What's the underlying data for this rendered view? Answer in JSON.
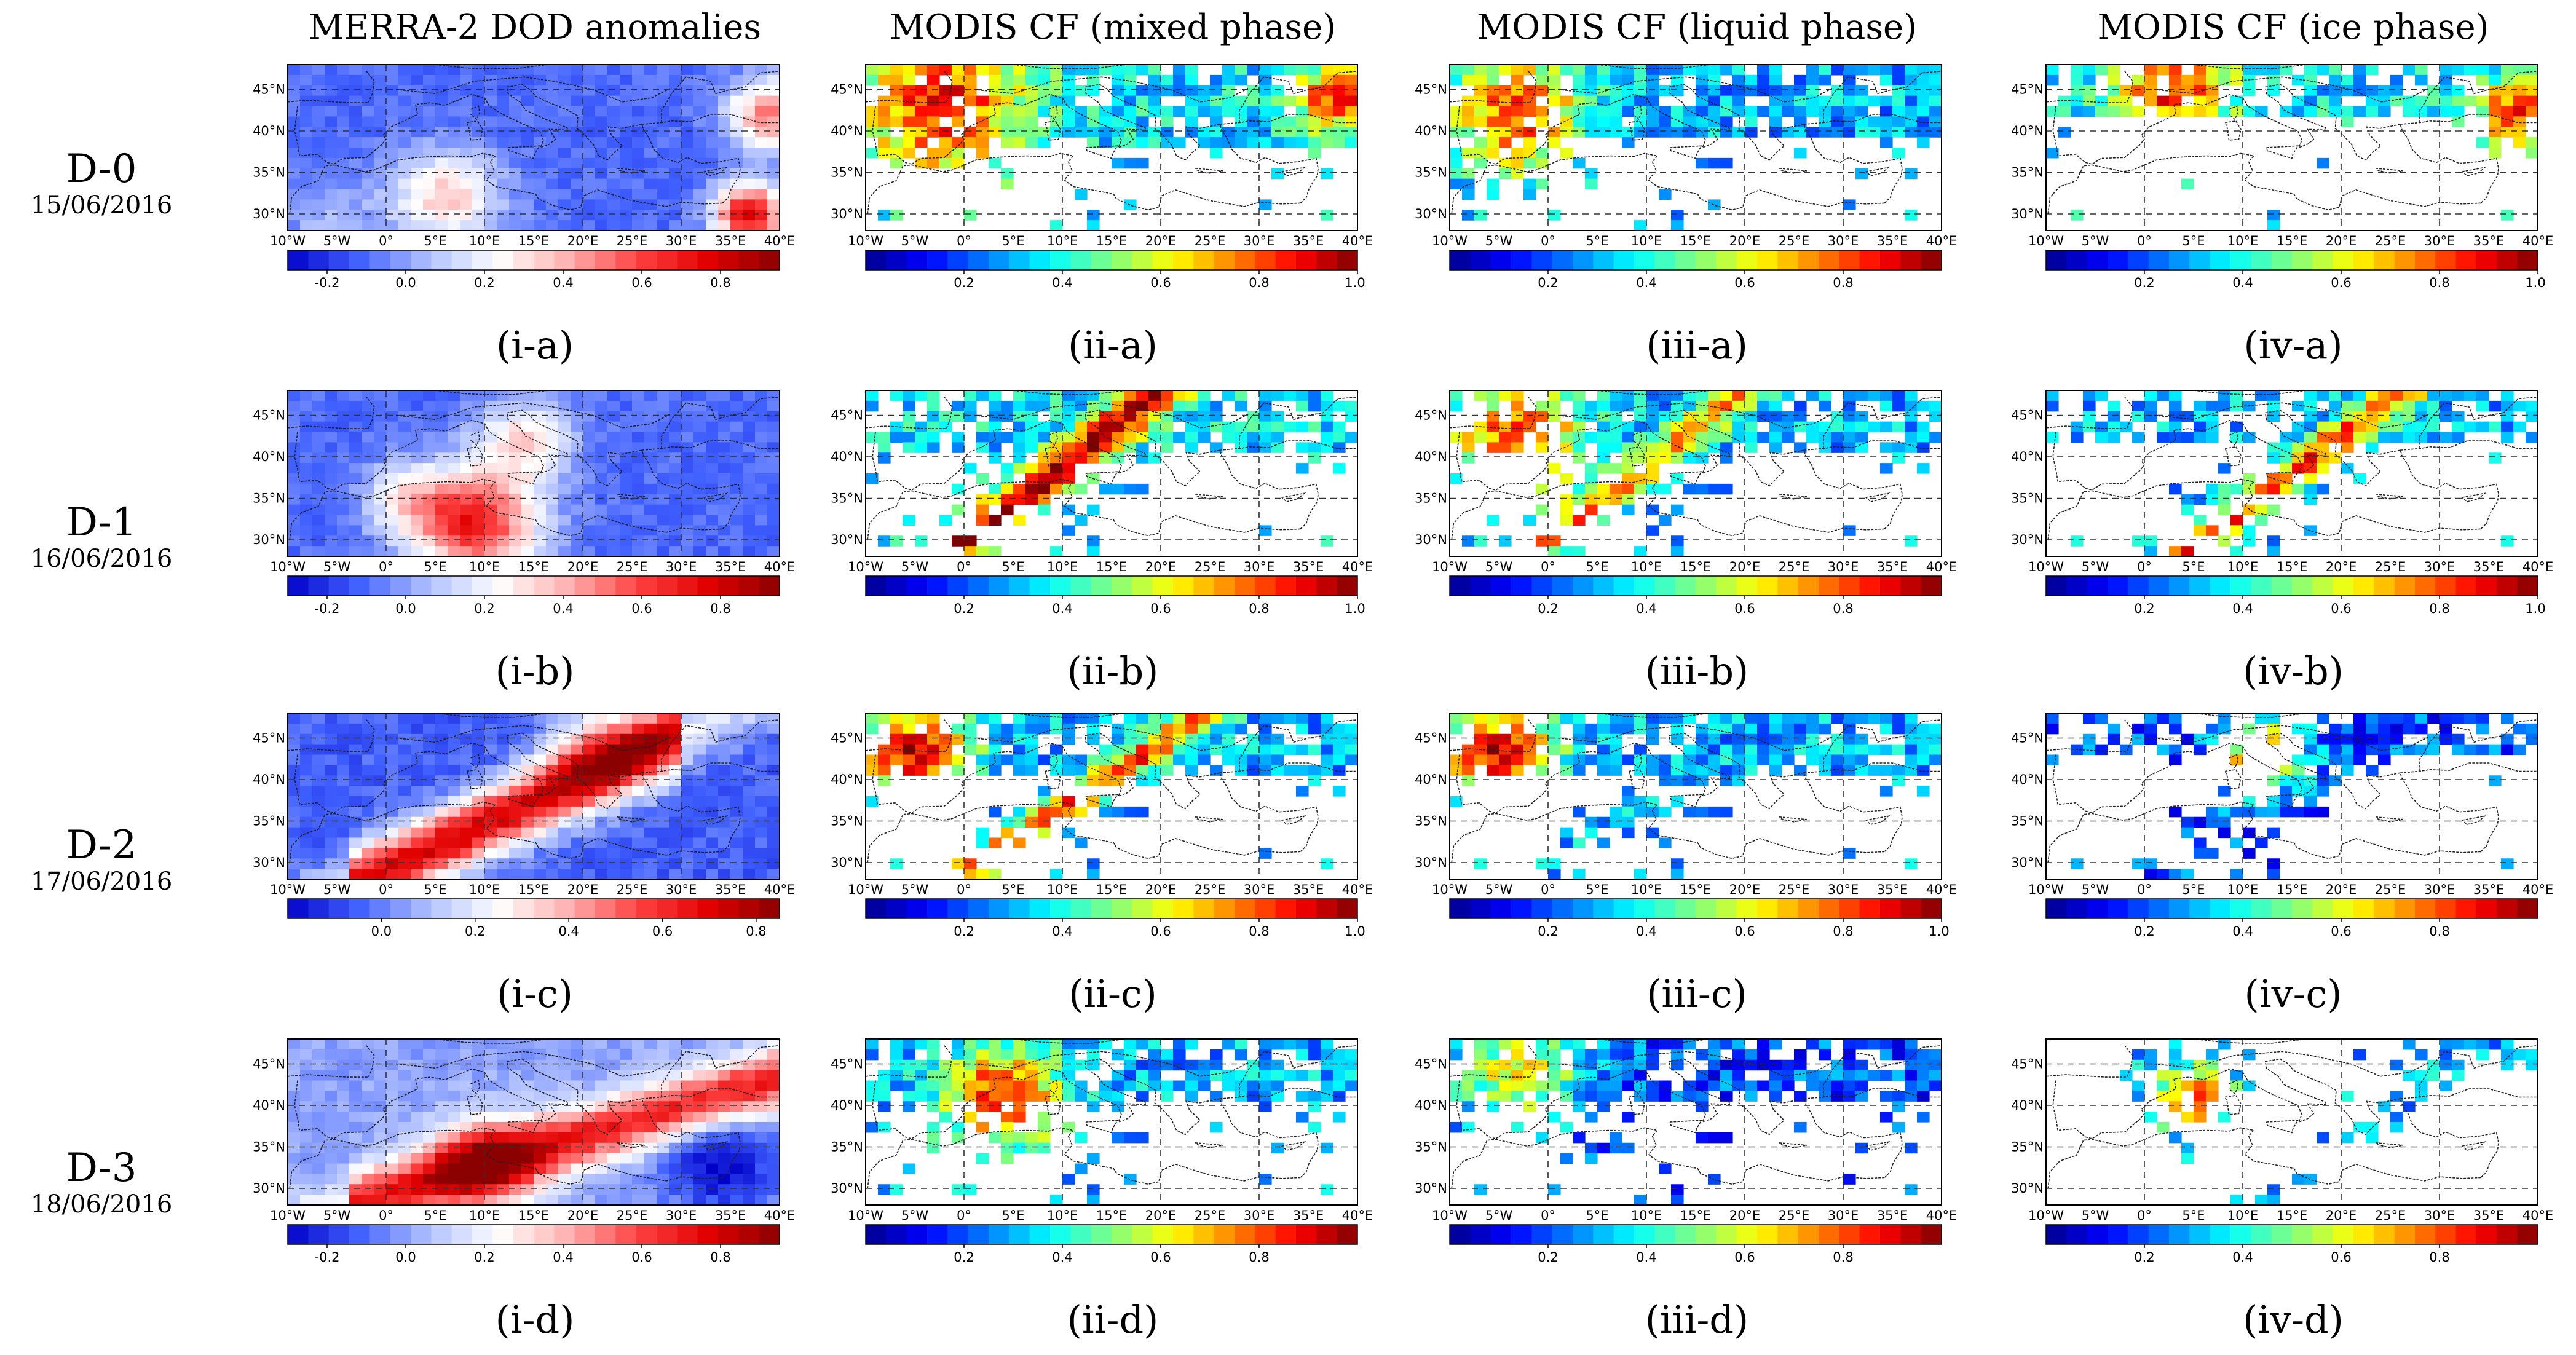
{
  "columns": [
    "MERRA-2 DOD anomalies",
    "MODIS CF (mixed phase)",
    "MODIS CF (liquid phase)",
    "MODIS CF (ice phase)"
  ],
  "rows": [
    {
      "day": "D-0",
      "date": "15/06/2016"
    },
    {
      "day": "D-1",
      "date": "16/06/2016"
    },
    {
      "day": "D-2",
      "date": "17/06/2016"
    },
    {
      "day": "D-3",
      "date": "18/06/2016"
    }
  ],
  "colors": {
    "cf_colormap": [
      "#00008f",
      "#0000ff",
      "#0080ff",
      "#00ffff",
      "#80ff80",
      "#ffff00",
      "#ff8000",
      "#ff0000",
      "#800000"
    ],
    "dod_colormap": [
      "#0000c8",
      "#4060ff",
      "#b0c0ff",
      "#ffffff",
      "#ffb0b0",
      "#ff4040",
      "#e00000",
      "#8b0000"
    ],
    "coastline": "#222222",
    "gridline": "#333333"
  },
  "chart_data": [
    {
      "id": "i-a",
      "type": "heatmap",
      "title": "MERRA-2 DOD anomalies",
      "caption": "(i-a)",
      "variable": "dod",
      "pattern": "d0",
      "xticks": [
        "10°W",
        "5°W",
        "0°",
        "5°E",
        "10°E",
        "15°E",
        "20°E",
        "25°E",
        "30°E",
        "35°E",
        "40°E"
      ],
      "yticks": [
        "45°N",
        "40°N",
        "35°N",
        "30°N"
      ],
      "ylim": [
        28,
        48
      ],
      "xlim": [
        -10,
        40
      ],
      "cbar_ticks": [
        "-0.2",
        "0.0",
        "0.2",
        "0.4",
        "0.6",
        "0.8"
      ],
      "cbar_range": [
        -0.3,
        0.95
      ]
    },
    {
      "id": "ii-a",
      "type": "heatmap",
      "title": "MODIS CF (mixed phase)",
      "caption": "(ii-a)",
      "variable": "cf",
      "pattern": "mixed-d0",
      "xticks": [
        "10°W",
        "5°W",
        "0°",
        "5°E",
        "10°E",
        "15°E",
        "20°E",
        "25°E",
        "30°E",
        "35°E",
        "40°E"
      ],
      "yticks": [
        "45°N",
        "40°N",
        "35°N",
        "30°N"
      ],
      "ylim": [
        28,
        48
      ],
      "xlim": [
        -10,
        40
      ],
      "cbar_ticks": [
        "0.2",
        "0.4",
        "0.6",
        "0.8",
        "1.0"
      ],
      "cbar_range": [
        0.0,
        1.0
      ]
    },
    {
      "id": "iii-a",
      "type": "heatmap",
      "title": "MODIS CF (liquid phase)",
      "caption": "(iii-a)",
      "variable": "cf",
      "pattern": "liquid-d0",
      "xticks": [
        "10°W",
        "5°W",
        "0°",
        "5°E",
        "10°E",
        "15°E",
        "20°E",
        "25°E",
        "30°E",
        "35°E",
        "40°E"
      ],
      "yticks": [
        "45°N",
        "40°N",
        "35°N",
        "30°N"
      ],
      "ylim": [
        28,
        48
      ],
      "xlim": [
        -10,
        40
      ],
      "cbar_ticks": [
        "0.2",
        "0.4",
        "0.6",
        "0.8"
      ],
      "cbar_range": [
        0.0,
        1.0
      ]
    },
    {
      "id": "iv-a",
      "type": "heatmap",
      "title": "MODIS CF (ice phase)",
      "caption": "(iv-a)",
      "variable": "cf",
      "pattern": "ice-d0",
      "xticks": [
        "10°W",
        "5°W",
        "0°",
        "5°E",
        "10°E",
        "15°E",
        "20°E",
        "25°E",
        "30°E",
        "35°E",
        "40°E"
      ],
      "yticks": [
        "45°N",
        "40°N",
        "35°N",
        "30°N"
      ],
      "ylim": [
        28,
        48
      ],
      "xlim": [
        -10,
        40
      ],
      "cbar_ticks": [
        "0.2",
        "0.4",
        "0.6",
        "0.8",
        "1.0"
      ],
      "cbar_range": [
        0.0,
        1.0
      ]
    },
    {
      "id": "i-b",
      "type": "heatmap",
      "title": "MERRA-2 DOD anomalies",
      "caption": "(i-b)",
      "variable": "dod",
      "pattern": "d1",
      "xticks": [
        "10°W",
        "5°W",
        "0°",
        "5°E",
        "10°E",
        "15°E",
        "20°E",
        "25°E",
        "30°E",
        "35°E",
        "40°E"
      ],
      "yticks": [
        "45°N",
        "40°N",
        "35°N",
        "30°N"
      ],
      "ylim": [
        28,
        48
      ],
      "xlim": [
        -10,
        40
      ],
      "cbar_ticks": [
        "-0.2",
        "0.0",
        "0.2",
        "0.4",
        "0.6",
        "0.8"
      ],
      "cbar_range": [
        -0.3,
        0.95
      ]
    },
    {
      "id": "ii-b",
      "type": "heatmap",
      "title": "MODIS CF (mixed phase)",
      "caption": "(ii-b)",
      "variable": "cf",
      "pattern": "mixed-d1",
      "xticks": [
        "10°W",
        "5°W",
        "0°",
        "5°E",
        "10°E",
        "15°E",
        "20°E",
        "25°E",
        "30°E",
        "35°E",
        "40°E"
      ],
      "yticks": [
        "45°N",
        "40°N",
        "35°N",
        "30°N"
      ],
      "ylim": [
        28,
        48
      ],
      "xlim": [
        -10,
        40
      ],
      "cbar_ticks": [
        "0.2",
        "0.4",
        "0.6",
        "0.8",
        "1.0"
      ],
      "cbar_range": [
        0.0,
        1.0
      ]
    },
    {
      "id": "iii-b",
      "type": "heatmap",
      "title": "MODIS CF (liquid phase)",
      "caption": "(iii-b)",
      "variable": "cf",
      "pattern": "liquid-d1",
      "xticks": [
        "10°W",
        "5°W",
        "0°",
        "5°E",
        "10°E",
        "15°E",
        "20°E",
        "25°E",
        "30°E",
        "35°E",
        "40°E"
      ],
      "yticks": [
        "45°N",
        "40°N",
        "35°N",
        "30°N"
      ],
      "ylim": [
        28,
        48
      ],
      "xlim": [
        -10,
        40
      ],
      "cbar_ticks": [
        "0.2",
        "0.4",
        "0.6",
        "0.8"
      ],
      "cbar_range": [
        0.0,
        1.0
      ]
    },
    {
      "id": "iv-b",
      "type": "heatmap",
      "title": "MODIS CF (ice phase)",
      "caption": "(iv-b)",
      "variable": "cf",
      "pattern": "ice-d1",
      "xticks": [
        "10°W",
        "5°W",
        "0°",
        "5°E",
        "10°E",
        "15°E",
        "20°E",
        "25°E",
        "30°E",
        "35°E",
        "40°E"
      ],
      "yticks": [
        "45°N",
        "40°N",
        "35°N",
        "30°N"
      ],
      "ylim": [
        28,
        48
      ],
      "xlim": [
        -10,
        40
      ],
      "cbar_ticks": [
        "0.2",
        "0.4",
        "0.6",
        "0.8",
        "1.0"
      ],
      "cbar_range": [
        0.0,
        1.0
      ]
    },
    {
      "id": "i-c",
      "type": "heatmap",
      "title": "MERRA-2 DOD anomalies",
      "caption": "(i-c)",
      "variable": "dod",
      "pattern": "d2",
      "xticks": [
        "10°W",
        "5°W",
        "0°",
        "5°E",
        "10°E",
        "15°E",
        "20°E",
        "25°E",
        "30°E",
        "35°E",
        "40°E"
      ],
      "yticks": [
        "45°N",
        "40°N",
        "35°N",
        "30°N"
      ],
      "ylim": [
        28,
        48
      ],
      "xlim": [
        -10,
        40
      ],
      "cbar_ticks": [
        "0.0",
        "0.2",
        "0.4",
        "0.6",
        "0.8"
      ],
      "cbar_range": [
        -0.2,
        0.85
      ]
    },
    {
      "id": "ii-c",
      "type": "heatmap",
      "title": "MODIS CF (mixed phase)",
      "caption": "(ii-c)",
      "variable": "cf",
      "pattern": "mixed-d2",
      "xticks": [
        "10°W",
        "5°W",
        "0°",
        "5°E",
        "10°E",
        "15°E",
        "20°E",
        "25°E",
        "30°E",
        "35°E",
        "40°E"
      ],
      "yticks": [
        "45°N",
        "40°N",
        "35°N",
        "30°N"
      ],
      "ylim": [
        28,
        48
      ],
      "xlim": [
        -10,
        40
      ],
      "cbar_ticks": [
        "0.2",
        "0.4",
        "0.6",
        "0.8",
        "1.0"
      ],
      "cbar_range": [
        0.0,
        1.0
      ]
    },
    {
      "id": "iii-c",
      "type": "heatmap",
      "title": "MODIS CF (liquid phase)",
      "caption": "(iii-c)",
      "variable": "cf",
      "pattern": "liquid-d2",
      "xticks": [
        "10°W",
        "5°W",
        "0°",
        "5°E",
        "10°E",
        "15°E",
        "20°E",
        "25°E",
        "30°E",
        "35°E",
        "40°E"
      ],
      "yticks": [
        "45°N",
        "40°N",
        "35°N",
        "30°N"
      ],
      "ylim": [
        28,
        48
      ],
      "xlim": [
        -10,
        40
      ],
      "cbar_ticks": [
        "0.2",
        "0.4",
        "0.6",
        "0.8",
        "1.0"
      ],
      "cbar_range": [
        0.0,
        1.0
      ]
    },
    {
      "id": "iv-c",
      "type": "heatmap",
      "title": "MODIS CF (ice phase)",
      "caption": "(iv-c)",
      "variable": "cf",
      "pattern": "ice-d2",
      "xticks": [
        "10°W",
        "5°W",
        "0°",
        "5°E",
        "10°E",
        "15°E",
        "20°E",
        "25°E",
        "30°E",
        "35°E",
        "40°E"
      ],
      "yticks": [
        "45°N",
        "40°N",
        "35°N",
        "30°N"
      ],
      "ylim": [
        28,
        48
      ],
      "xlim": [
        -10,
        40
      ],
      "cbar_ticks": [
        "0.2",
        "0.4",
        "0.6",
        "0.8"
      ],
      "cbar_range": [
        0.0,
        1.0
      ]
    },
    {
      "id": "i-d",
      "type": "heatmap",
      "title": "MERRA-2 DOD anomalies",
      "caption": "(i-d)",
      "variable": "dod",
      "pattern": "d3",
      "xticks": [
        "10°W",
        "5°W",
        "0°",
        "5°E",
        "10°E",
        "15°E",
        "20°E",
        "25°E",
        "30°E",
        "35°E",
        "40°E"
      ],
      "yticks": [
        "45°N",
        "40°N",
        "35°N",
        "30°N"
      ],
      "ylim": [
        28,
        48
      ],
      "xlim": [
        -10,
        40
      ],
      "cbar_ticks": [
        "-0.2",
        "0.0",
        "0.2",
        "0.4",
        "0.6",
        "0.8"
      ],
      "cbar_range": [
        -0.3,
        0.95
      ]
    },
    {
      "id": "ii-d",
      "type": "heatmap",
      "title": "MODIS CF (mixed phase)",
      "caption": "(ii-d)",
      "variable": "cf",
      "pattern": "mixed-d3",
      "xticks": [
        "10°W",
        "5°W",
        "0°",
        "5°E",
        "10°E",
        "15°E",
        "20°E",
        "25°E",
        "30°E",
        "35°E",
        "40°E"
      ],
      "yticks": [
        "45°N",
        "40°N",
        "35°N",
        "30°N"
      ],
      "ylim": [
        28,
        48
      ],
      "xlim": [
        -10,
        40
      ],
      "cbar_ticks": [
        "0.2",
        "0.4",
        "0.6",
        "0.8"
      ],
      "cbar_range": [
        0.0,
        1.0
      ]
    },
    {
      "id": "iii-d",
      "type": "heatmap",
      "title": "MODIS CF (liquid phase)",
      "caption": "(iii-d)",
      "variable": "cf",
      "pattern": "liquid-d3",
      "xticks": [
        "10°W",
        "5°W",
        "0°",
        "5°E",
        "10°E",
        "15°E",
        "20°E",
        "25°E",
        "30°E",
        "35°E",
        "40°E"
      ],
      "yticks": [
        "45°N",
        "40°N",
        "35°N",
        "30°N"
      ],
      "ylim": [
        28,
        48
      ],
      "xlim": [
        -10,
        40
      ],
      "cbar_ticks": [
        "0.2",
        "0.4",
        "0.6",
        "0.8"
      ],
      "cbar_range": [
        0.0,
        1.0
      ]
    },
    {
      "id": "iv-d",
      "type": "heatmap",
      "title": "MODIS CF (ice phase)",
      "caption": "(iv-d)",
      "variable": "cf",
      "pattern": "ice-d3",
      "xticks": [
        "10°W",
        "5°W",
        "0°",
        "5°E",
        "10°E",
        "15°E",
        "20°E",
        "25°E",
        "30°E",
        "35°E",
        "40°E"
      ],
      "yticks": [
        "45°N",
        "40°N",
        "35°N",
        "30°N"
      ],
      "ylim": [
        28,
        48
      ],
      "xlim": [
        -10,
        40
      ],
      "cbar_ticks": [
        "0.2",
        "0.4",
        "0.6",
        "0.8"
      ],
      "cbar_range": [
        0.0,
        1.0
      ]
    }
  ]
}
